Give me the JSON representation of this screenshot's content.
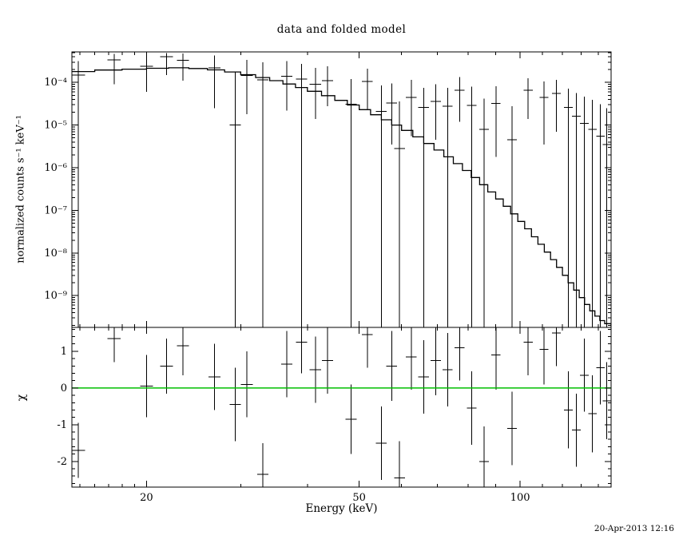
{
  "title": "data and folded model",
  "timestamp": "20-Apr-2013 12:16",
  "chart_data": {
    "type": "scatter",
    "title": "data and folded model",
    "xlabel": "Energy (keV)",
    "x_scale": "log",
    "x_range": [
      14.5,
      148
    ],
    "x_major_ticks": [
      {
        "v": 20,
        "label": "20"
      },
      {
        "v": 50,
        "label": "50"
      },
      {
        "v": 100,
        "label": "100"
      }
    ],
    "x_minor_ticks": [
      15,
      16,
      17,
      18,
      19,
      30,
      40,
      60,
      70,
      80,
      90,
      110,
      120,
      130,
      140
    ],
    "frame_color": "#000000",
    "panels": [
      {
        "name": "folded-spectrum",
        "ylabel": "normalized counts s⁻¹ keV⁻¹",
        "y_scale": "log",
        "y_range": [
          1.8e-10,
          0.00052
        ],
        "y_major_ticks": [
          {
            "v": 0.0001,
            "label": "10⁻⁴"
          },
          {
            "v": 1e-05,
            "label": "10⁻⁵"
          },
          {
            "v": 1e-06,
            "label": "10⁻⁶"
          },
          {
            "v": 1e-07,
            "label": "10⁻⁷"
          },
          {
            "v": 1e-08,
            "label": "10⁻⁸"
          },
          {
            "v": 1e-09,
            "label": "10⁻⁹"
          }
        ],
        "model_color": "#000000",
        "data_color": "#000000",
        "model_steps": [
          [
            14.5,
            0.00018
          ],
          [
            16,
            0.000195
          ],
          [
            18,
            0.000205
          ],
          [
            20,
            0.000215
          ],
          [
            22,
            0.00022
          ],
          [
            24,
            0.000212
          ],
          [
            26,
            0.000197
          ],
          [
            28,
            0.000176
          ],
          [
            30,
            0.000152
          ],
          [
            32,
            0.00013
          ],
          [
            34,
            0.00011
          ],
          [
            36,
            9.2e-05
          ],
          [
            38,
            7.6e-05
          ],
          [
            40,
            6.2e-05
          ],
          [
            42.5,
            4.9e-05
          ],
          [
            45,
            3.8e-05
          ],
          [
            47.5,
            2.95e-05
          ],
          [
            50,
            2.3e-05
          ],
          [
            52.5,
            1.75e-05
          ],
          [
            55,
            1.33e-05
          ],
          [
            57.5,
            1e-05
          ],
          [
            60,
            7.5e-06
          ],
          [
            63,
            5.3e-06
          ],
          [
            66,
            3.7e-06
          ],
          [
            69,
            2.6e-06
          ],
          [
            72,
            1.8e-06
          ],
          [
            75,
            1.25e-06
          ],
          [
            78,
            8.6e-07
          ],
          [
            81,
            5.9e-07
          ],
          [
            84,
            4e-07
          ],
          [
            87,
            2.7e-07
          ],
          [
            90,
            1.85e-07
          ],
          [
            93,
            1.25e-07
          ],
          [
            96,
            8.3e-08
          ],
          [
            99,
            5.5e-08
          ],
          [
            102,
            3.7e-08
          ],
          [
            105,
            2.4e-08
          ],
          [
            108,
            1.6e-08
          ],
          [
            111,
            1.05e-08
          ],
          [
            114,
            7e-09
          ],
          [
            117,
            4.6e-09
          ],
          [
            120,
            3e-09
          ],
          [
            123,
            2e-09
          ],
          [
            126,
            1.35e-09
          ],
          [
            129,
            9e-10
          ],
          [
            132,
            6.2e-10
          ],
          [
            135,
            4.4e-10
          ],
          [
            138,
            3.3e-10
          ],
          [
            141,
            2.6e-10
          ],
          [
            144,
            2.2e-10
          ],
          [
            148,
            1.9e-10
          ]
        ],
        "points": [
          {
            "e": 14.9,
            "ew": 0.45,
            "f": 0.00015,
            "flo": 1e-10,
            "fhi": 0.00032
          },
          {
            "e": 17.4,
            "ew": 0.5,
            "f": 0.00034,
            "flo": 9e-05,
            "fhi": 0.00047
          },
          {
            "e": 20.0,
            "ew": 0.55,
            "f": 0.00024,
            "flo": 6e-05,
            "fhi": 0.00044
          },
          {
            "e": 21.8,
            "ew": 0.6,
            "f": 0.0004,
            "flo": 0.00015,
            "fhi": 0.00049
          },
          {
            "e": 23.4,
            "ew": 0.6,
            "f": 0.00033,
            "flo": 0.00011,
            "fhi": 0.00048
          },
          {
            "e": 26.8,
            "ew": 0.7,
            "f": 0.00022,
            "flo": 2.5e-05,
            "fhi": 0.00043
          },
          {
            "e": 29.3,
            "ew": 0.7,
            "f": 1e-05,
            "flo": 1e-10,
            "fhi": 0.00018
          },
          {
            "e": 30.8,
            "ew": 0.8,
            "f": 0.000145,
            "flo": 1.8e-05,
            "fhi": 0.00034
          },
          {
            "e": 33.0,
            "ew": 0.8,
            "f": 0.000115,
            "flo": 1e-10,
            "fhi": 0.0003
          },
          {
            "e": 36.6,
            "ew": 0.9,
            "f": 0.00014,
            "flo": 2.2e-05,
            "fhi": 0.00032
          },
          {
            "e": 39.0,
            "ew": 0.95,
            "f": 0.00012,
            "flo": 1e-10,
            "fhi": 0.00027
          },
          {
            "e": 41.4,
            "ew": 1.0,
            "f": 9e-05,
            "flo": 1.4e-05,
            "fhi": 0.00022
          },
          {
            "e": 43.6,
            "ew": 1.05,
            "f": 0.00011,
            "flo": 2.8e-05,
            "fhi": 0.00024
          },
          {
            "e": 48.3,
            "ew": 1.15,
            "f": 3.1e-05,
            "flo": 1e-10,
            "fhi": 0.00012
          },
          {
            "e": 51.8,
            "ew": 1.2,
            "f": 0.000105,
            "flo": 2.4e-05,
            "fhi": 0.00021
          },
          {
            "e": 55.0,
            "ew": 1.3,
            "f": 2.1e-05,
            "flo": 1e-10,
            "fhi": 8.5e-05
          },
          {
            "e": 57.5,
            "ew": 1.35,
            "f": 3.3e-05,
            "flo": 3.5e-06,
            "fhi": 9.5e-05
          },
          {
            "e": 59.5,
            "ew": 1.4,
            "f": 2.8e-06,
            "flo": 1e-10,
            "fhi": 3.6e-05
          },
          {
            "e": 62.6,
            "ew": 1.45,
            "f": 4.5e-05,
            "flo": 5.5e-06,
            "fhi": 0.000115
          },
          {
            "e": 66.0,
            "ew": 1.5,
            "f": 2.6e-05,
            "flo": 1e-10,
            "fhi": 7.5e-05
          },
          {
            "e": 69.5,
            "ew": 1.55,
            "f": 3.6e-05,
            "flo": 4.5e-06,
            "fhi": 9e-05
          },
          {
            "e": 73.2,
            "ew": 1.6,
            "f": 2.8e-05,
            "flo": 1e-10,
            "fhi": 7.5e-05
          },
          {
            "e": 77.1,
            "ew": 1.65,
            "f": 6.5e-05,
            "flo": 1.2e-05,
            "fhi": 0.000135
          },
          {
            "e": 81.2,
            "ew": 1.7,
            "f": 2.9e-05,
            "flo": 1e-10,
            "fhi": 8e-05
          },
          {
            "e": 85.6,
            "ew": 1.75,
            "f": 8e-06,
            "flo": 1e-10,
            "fhi": 4.2e-05
          },
          {
            "e": 90.1,
            "ew": 1.8,
            "f": 3.2e-05,
            "flo": 1.8e-06,
            "fhi": 8.2e-05
          },
          {
            "e": 96.6,
            "ew": 1.95,
            "f": 4.5e-06,
            "flo": 1e-10,
            "fhi": 2.8e-05
          },
          {
            "e": 103.5,
            "ew": 2.05,
            "f": 6.5e-05,
            "flo": 1.4e-05,
            "fhi": 0.000125
          },
          {
            "e": 110.9,
            "ew": 2.15,
            "f": 4.5e-05,
            "flo": 3.5e-06,
            "fhi": 0.000105
          },
          {
            "e": 116.9,
            "ew": 2.2,
            "f": 5.5e-05,
            "flo": 7e-06,
            "fhi": 0.000115
          },
          {
            "e": 123.1,
            "ew": 2.35,
            "f": 2.6e-05,
            "flo": 1e-10,
            "fhi": 7.2e-05
          },
          {
            "e": 127.5,
            "ew": 2.4,
            "f": 1.6e-05,
            "flo": 1e-10,
            "fhi": 5.6e-05
          },
          {
            "e": 131.9,
            "ew": 2.45,
            "f": 1.1e-05,
            "flo": 1e-10,
            "fhi": 4.6e-05
          },
          {
            "e": 136.6,
            "ew": 2.5,
            "f": 8e-06,
            "flo": 1e-10,
            "fhi": 3.9e-05
          },
          {
            "e": 141.4,
            "ew": 2.55,
            "f": 5.5e-06,
            "flo": 1e-10,
            "fhi": 3.1e-05
          },
          {
            "e": 145.3,
            "ew": 2.6,
            "f": 3.5e-06,
            "flo": 1e-10,
            "fhi": 2.5e-05
          }
        ]
      },
      {
        "name": "residuals",
        "ylabel": "χ",
        "y_scale": "linear",
        "y_range": [
          -2.7,
          1.65
        ],
        "y_major_ticks": [
          {
            "v": 1,
            "label": "1"
          },
          {
            "v": 0,
            "label": "0"
          },
          {
            "v": -1,
            "label": "-1"
          },
          {
            "v": -2,
            "label": "-2"
          }
        ],
        "y_minor_step": 0.2,
        "zero_line_color": "#00bf00",
        "points": [
          {
            "e": 14.9,
            "ew": 0.45,
            "chi": -1.7,
            "cerr": 0.75
          },
          {
            "e": 17.4,
            "ew": 0.5,
            "chi": 1.35,
            "cerr": 0.65
          },
          {
            "e": 20.0,
            "ew": 0.55,
            "chi": 0.05,
            "cerr": 0.85
          },
          {
            "e": 21.8,
            "ew": 0.6,
            "chi": 0.6,
            "cerr": 0.75
          },
          {
            "e": 23.4,
            "ew": 0.6,
            "chi": 1.15,
            "cerr": 0.8
          },
          {
            "e": 26.8,
            "ew": 0.7,
            "chi": 0.3,
            "cerr": 0.9
          },
          {
            "e": 29.3,
            "ew": 0.7,
            "chi": -0.45,
            "cerr": 1.0
          },
          {
            "e": 30.8,
            "ew": 0.8,
            "chi": 0.1,
            "cerr": 0.9
          },
          {
            "e": 33.0,
            "ew": 0.8,
            "chi": -2.35,
            "cerr": 0.85
          },
          {
            "e": 36.6,
            "ew": 0.9,
            "chi": 0.65,
            "cerr": 0.9
          },
          {
            "e": 39.0,
            "ew": 0.95,
            "chi": 1.25,
            "cerr": 0.85
          },
          {
            "e": 41.4,
            "ew": 1.0,
            "chi": 0.5,
            "cerr": 0.9
          },
          {
            "e": 43.6,
            "ew": 1.05,
            "chi": 0.75,
            "cerr": 0.9
          },
          {
            "e": 48.3,
            "ew": 1.15,
            "chi": -0.85,
            "cerr": 0.95
          },
          {
            "e": 51.8,
            "ew": 1.2,
            "chi": 1.45,
            "cerr": 0.9
          },
          {
            "e": 55.0,
            "ew": 1.3,
            "chi": -1.5,
            "cerr": 1.0
          },
          {
            "e": 57.5,
            "ew": 1.35,
            "chi": 0.6,
            "cerr": 0.95
          },
          {
            "e": 59.5,
            "ew": 1.4,
            "chi": -2.45,
            "cerr": 1.0
          },
          {
            "e": 62.6,
            "ew": 1.45,
            "chi": 0.85,
            "cerr": 0.9
          },
          {
            "e": 66.0,
            "ew": 1.5,
            "chi": 0.3,
            "cerr": 1.0
          },
          {
            "e": 69.5,
            "ew": 1.55,
            "chi": 0.75,
            "cerr": 0.95
          },
          {
            "e": 73.2,
            "ew": 1.6,
            "chi": 0.5,
            "cerr": 1.0
          },
          {
            "e": 77.1,
            "ew": 1.65,
            "chi": 1.1,
            "cerr": 0.9
          },
          {
            "e": 81.2,
            "ew": 1.7,
            "chi": -0.55,
            "cerr": 1.0
          },
          {
            "e": 85.6,
            "ew": 1.75,
            "chi": -2.0,
            "cerr": 0.95
          },
          {
            "e": 90.1,
            "ew": 1.8,
            "chi": 0.9,
            "cerr": 0.95
          },
          {
            "e": 96.6,
            "ew": 1.95,
            "chi": -1.1,
            "cerr": 1.0
          },
          {
            "e": 103.5,
            "ew": 2.05,
            "chi": 1.25,
            "cerr": 0.9
          },
          {
            "e": 110.9,
            "ew": 2.15,
            "chi": 1.05,
            "cerr": 0.95
          },
          {
            "e": 116.9,
            "ew": 2.2,
            "chi": 1.5,
            "cerr": 0.9
          },
          {
            "e": 123.1,
            "ew": 2.35,
            "chi": -0.6,
            "cerr": 1.05
          },
          {
            "e": 127.5,
            "ew": 2.4,
            "chi": -1.15,
            "cerr": 1.0
          },
          {
            "e": 131.9,
            "ew": 2.45,
            "chi": 0.35,
            "cerr": 1.0
          },
          {
            "e": 136.6,
            "ew": 2.5,
            "chi": -0.7,
            "cerr": 1.05
          },
          {
            "e": 141.4,
            "ew": 2.55,
            "chi": 0.55,
            "cerr": 1.0
          },
          {
            "e": 145.3,
            "ew": 2.6,
            "chi": -0.35,
            "cerr": 1.05
          }
        ]
      }
    ]
  }
}
